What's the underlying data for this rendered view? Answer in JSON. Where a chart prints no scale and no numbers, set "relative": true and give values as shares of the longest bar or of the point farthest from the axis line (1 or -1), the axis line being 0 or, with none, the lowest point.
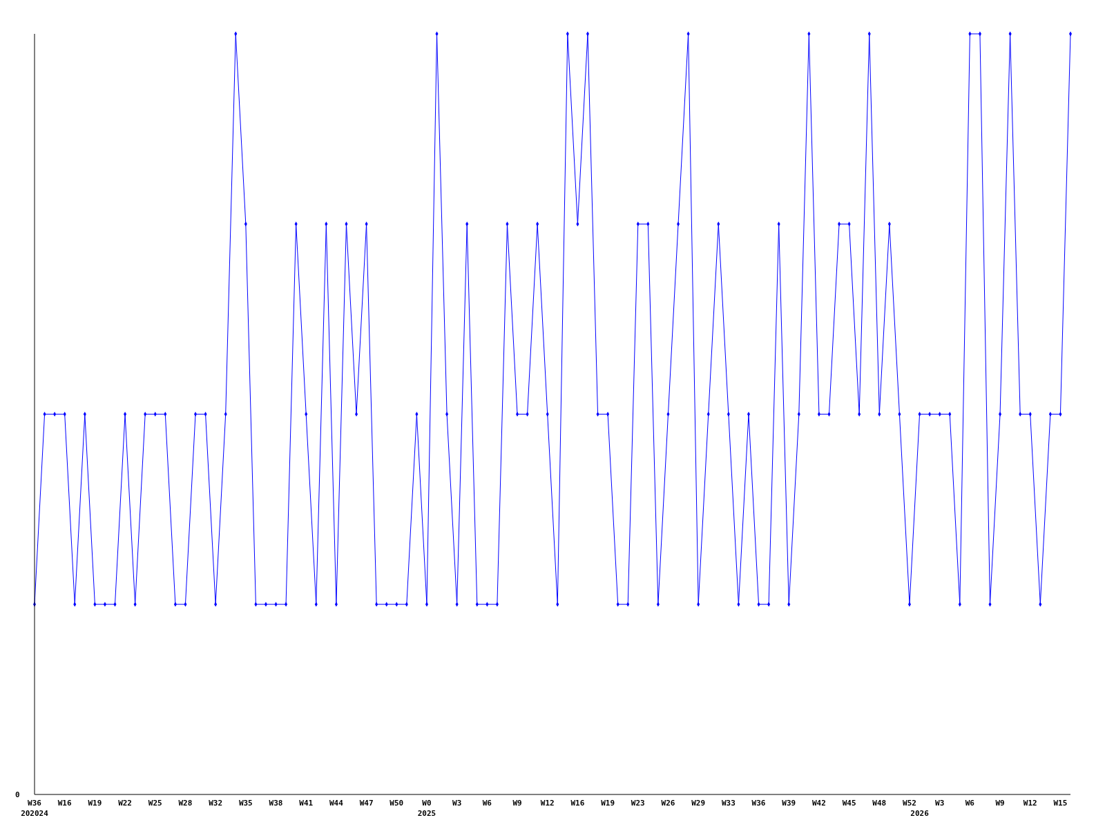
{
  "chart_data": {
    "type": "line",
    "relative": true,
    "marker": "diamond",
    "annotations": [
      "0"
    ],
    "categories": [
      "W36\n202024",
      null,
      null,
      "W16",
      null,
      null,
      "W19",
      null,
      null,
      "W22",
      null,
      null,
      "W25",
      null,
      null,
      "W28",
      null,
      null,
      "W32",
      null,
      null,
      "W35",
      null,
      null,
      "W38",
      null,
      null,
      "W41",
      null,
      null,
      "W44",
      null,
      null,
      "W47",
      null,
      null,
      "W50",
      null,
      null,
      "W0\n2025",
      null,
      null,
      "W3",
      null,
      null,
      "W6",
      null,
      null,
      "W9",
      null,
      null,
      "W12",
      null,
      null,
      "W16",
      null,
      null,
      "W19",
      null,
      null,
      "W23",
      null,
      null,
      "W26",
      null,
      null,
      "W29",
      null,
      null,
      "W33",
      null,
      null,
      "W36",
      null,
      null,
      "W39",
      null,
      null,
      "W42",
      null,
      null,
      "W45",
      null,
      null,
      "W48",
      null,
      null,
      "W52",
      "\n2026",
      null,
      "W3",
      null,
      null,
      "W6",
      null,
      null,
      "W9",
      null,
      null,
      "W12",
      null,
      null,
      "W15",
      null
    ],
    "series": [
      {
        "color": "#0000ff",
        "values": [
          0.25,
          0.5,
          0.5,
          0.5,
          0.25,
          0.5,
          0.25,
          0.25,
          0.25,
          0.5,
          0.25,
          0.5,
          0.5,
          0.5,
          0.25,
          0.25,
          0.5,
          0.5,
          0.25,
          0.5,
          1,
          0.75,
          0.25,
          0.25,
          0.25,
          0.25,
          0.75,
          0.5,
          0.25,
          0.75,
          0.25,
          0.75,
          0.5,
          0.75,
          0.25,
          0.25,
          0.25,
          0.25,
          0.5,
          0.25,
          1,
          0.5,
          0.25,
          0.75,
          0.25,
          0.25,
          0.25,
          0.75,
          0.5,
          0.5,
          0.75,
          0.5,
          0.25,
          1,
          0.75,
          1,
          0.5,
          0.5,
          0.25,
          0.25,
          0.75,
          0.75,
          0.25,
          0.5,
          0.75,
          1,
          0.25,
          0.5,
          0.75,
          0.5,
          0.25,
          0.5,
          0.25,
          0.25,
          0.75,
          0.25,
          0.5,
          1,
          0.5,
          0.5,
          0.75,
          0.75,
          0.5,
          1,
          0.5,
          0.75,
          0.5,
          0.25,
          0.5,
          0.5,
          0.5,
          0.5,
          0.25,
          1,
          1,
          0.25,
          0.5,
          1,
          0.5,
          0.5,
          0.25,
          0.5,
          0.5,
          1
        ]
      }
    ]
  }
}
